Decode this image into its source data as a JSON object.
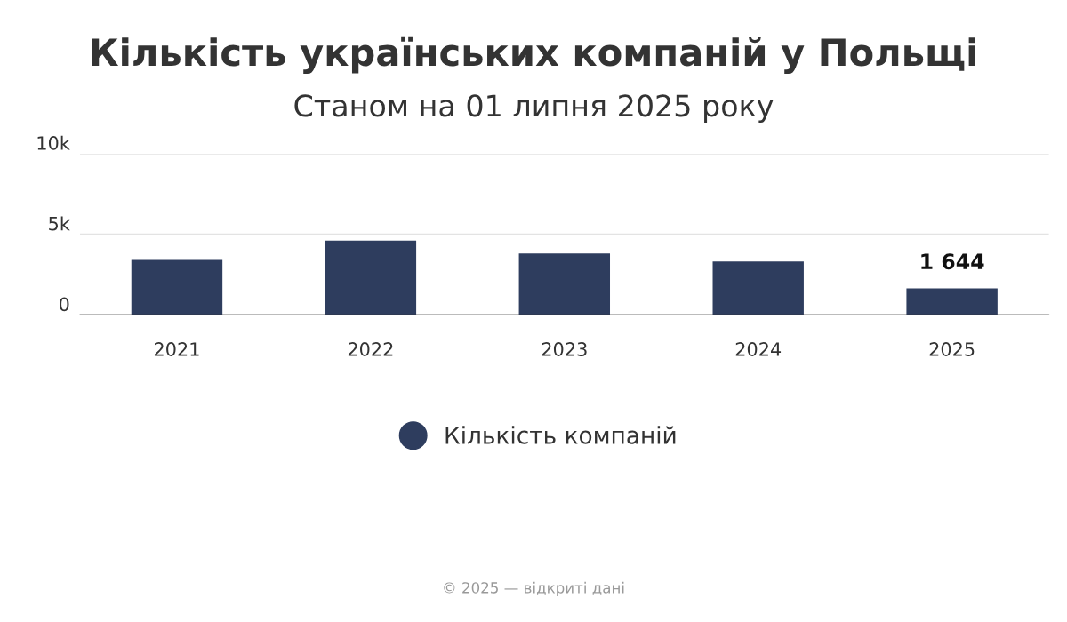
{
  "chart_data": {
    "type": "bar",
    "title": "Кількість українських компаній у Польщі",
    "subtitle": "Станом на 01 липня 2025 року",
    "categories": [
      "2021",
      "2022",
      "2023",
      "2024",
      "2025"
    ],
    "series": [
      {
        "name": "Кількість компаній",
        "color": "#2e3d5e",
        "values": [
          3400,
          4600,
          3800,
          3300,
          1644
        ],
        "value_labels": [
          null,
          null,
          null,
          null,
          "1 644"
        ]
      }
    ],
    "ylim": [
      0,
      10000
    ],
    "yticks": [
      {
        "value": 0,
        "label": "0"
      },
      {
        "value": 5000,
        "label": "5k"
      },
      {
        "value": 10000,
        "label": "10k"
      }
    ],
    "grid": "y",
    "legend": "bottom",
    "annotations": [
      "© 2025 — відкриті дані"
    ]
  }
}
